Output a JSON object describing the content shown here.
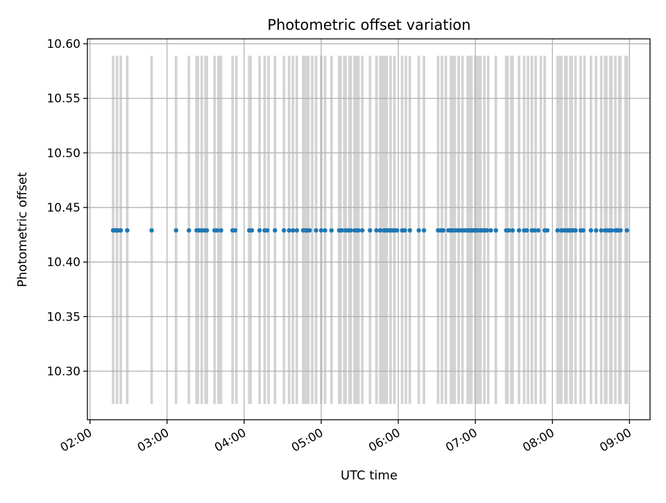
{
  "chart_data": {
    "type": "scatter",
    "title": "Photometric offset variation",
    "xlabel": "UTC time",
    "ylabel": "Photometric offset",
    "x_unit": "UTC time of day",
    "xlim": [
      "01:58",
      "09:16"
    ],
    "ylim": [
      10.2555,
      10.6045
    ],
    "x_tick_labels": [
      "02:00",
      "03:00",
      "04:00",
      "05:00",
      "06:00",
      "07:00",
      "08:00",
      "09:00"
    ],
    "y_tick_values": [
      10.3,
      10.35,
      10.4,
      10.45,
      10.5,
      10.55,
      10.6
    ],
    "y_tick_labels": [
      "10.30",
      "10.35",
      "10.40",
      "10.45",
      "10.50",
      "10.55",
      "10.60"
    ],
    "grid": true,
    "colors": {
      "points": "#1f77b4",
      "bands": "#d3d3d3",
      "grid": "#b0b0b0",
      "axes": "#000000"
    },
    "series": [
      {
        "mark": "point",
        "y": 10.429,
        "x": [
          "02:18",
          "02:19",
          "02:20",
          "02:21",
          "02:22",
          "02:24",
          "02:29",
          "02:48",
          "03:07",
          "03:17",
          "03:23",
          "03:25",
          "03:27",
          "03:29",
          "03:31",
          "03:37",
          "03:39",
          "03:42",
          "03:51",
          "03:53",
          "04:04",
          "04:06",
          "04:12",
          "04:16",
          "04:18",
          "04:24",
          "04:31",
          "04:35",
          "04:38",
          "04:41",
          "04:46",
          "04:48",
          "04:49",
          "04:51",
          "04:56",
          "05:00",
          "05:03",
          "05:08",
          "05:14",
          "05:16",
          "05:19",
          "05:21",
          "05:23",
          "05:26",
          "05:28",
          "05:29",
          "05:32",
          "05:38",
          "05:43",
          "05:46",
          "05:49",
          "05:50",
          "05:51",
          "05:53",
          "05:54",
          "05:56",
          "05:57",
          "05:59",
          "06:03",
          "06:05",
          "06:09",
          "06:16",
          "06:20",
          "06:31",
          "06:33",
          "06:35",
          "06:39",
          "06:41",
          "06:42",
          "06:44",
          "06:46",
          "06:48",
          "06:50",
          "06:52",
          "06:54",
          "06:55",
          "06:56",
          "06:57",
          "06:58",
          "06:59",
          "07:00",
          "07:01",
          "07:02",
          "07:04",
          "07:05",
          "07:07",
          "07:08",
          "07:09",
          "07:12",
          "07:16",
          "07:24",
          "07:26",
          "07:29",
          "07:34",
          "07:38",
          "07:40",
          "07:44",
          "07:46",
          "07:49",
          "07:54",
          "07:56",
          "08:04",
          "08:07",
          "08:09",
          "08:11",
          "08:12",
          "08:13",
          "08:14",
          "08:16",
          "08:18",
          "08:22",
          "08:24",
          "08:30",
          "08:34",
          "08:38",
          "08:41",
          "08:42",
          "08:44",
          "08:46",
          "08:49",
          "08:50",
          "08:51",
          "08:53",
          "08:58"
        ]
      },
      {
        "mark": "band",
        "y_range": [
          10.27,
          10.589
        ],
        "x_intervals": [
          [
            "02:17",
            "02:19"
          ],
          [
            "02:20",
            "02:22"
          ],
          [
            "02:23",
            "02:25"
          ],
          [
            "02:28",
            "02:30"
          ],
          [
            "02:47",
            "02:49"
          ],
          [
            "03:06",
            "03:08"
          ],
          [
            "03:16",
            "03:18"
          ],
          [
            "03:22",
            "03:25"
          ],
          [
            "03:26",
            "03:28"
          ],
          [
            "03:29",
            "03:32"
          ],
          [
            "03:36",
            "03:38"
          ],
          [
            "03:39",
            "03:43"
          ],
          [
            "03:50",
            "03:52"
          ],
          [
            "03:53",
            "03:55"
          ],
          [
            "04:03",
            "04:06"
          ],
          [
            "04:11",
            "04:13"
          ],
          [
            "04:15",
            "04:17"
          ],
          [
            "04:18",
            "04:20"
          ],
          [
            "04:23",
            "04:25"
          ],
          [
            "04:30",
            "04:32"
          ],
          [
            "04:34",
            "04:36"
          ],
          [
            "04:37",
            "04:39"
          ],
          [
            "04:40",
            "04:42"
          ],
          [
            "04:45",
            "04:51"
          ],
          [
            "04:52",
            "04:54"
          ],
          [
            "04:55",
            "04:57"
          ],
          [
            "04:59",
            "05:01"
          ],
          [
            "05:02",
            "05:04"
          ],
          [
            "05:07",
            "05:09"
          ],
          [
            "05:13",
            "05:16"
          ],
          [
            "05:17",
            "05:20"
          ],
          [
            "05:21",
            "05:24"
          ],
          [
            "05:25",
            "05:30"
          ],
          [
            "05:31",
            "05:33"
          ],
          [
            "05:37",
            "05:39"
          ],
          [
            "05:42",
            "05:44"
          ],
          [
            "05:45",
            "05:52"
          ],
          [
            "05:53",
            "05:55"
          ],
          [
            "05:56",
            "05:58"
          ],
          [
            "06:02",
            "06:04"
          ],
          [
            "06:05",
            "06:07"
          ],
          [
            "06:08",
            "06:10"
          ],
          [
            "06:15",
            "06:17"
          ],
          [
            "06:19",
            "06:21"
          ],
          [
            "06:30",
            "06:32"
          ],
          [
            "06:33",
            "06:35"
          ],
          [
            "06:36",
            "06:38"
          ],
          [
            "06:40",
            "06:45"
          ],
          [
            "06:46",
            "06:48"
          ],
          [
            "06:49",
            "06:51"
          ],
          [
            "06:53",
            "06:58"
          ],
          [
            "06:59",
            "07:05"
          ],
          [
            "07:06",
            "07:08"
          ],
          [
            "07:09",
            "07:11"
          ],
          [
            "07:15",
            "07:17"
          ],
          [
            "07:23",
            "07:26"
          ],
          [
            "07:27",
            "07:30"
          ],
          [
            "07:33",
            "07:35"
          ],
          [
            "07:37",
            "07:39"
          ],
          [
            "07:40",
            "07:42"
          ],
          [
            "07:43",
            "07:45"
          ],
          [
            "07:46",
            "07:48"
          ],
          [
            "07:50",
            "07:52"
          ],
          [
            "07:53",
            "07:55"
          ],
          [
            "08:03",
            "08:08"
          ],
          [
            "08:09",
            "08:12"
          ],
          [
            "08:13",
            "08:16"
          ],
          [
            "08:17",
            "08:19"
          ],
          [
            "08:21",
            "08:23"
          ],
          [
            "08:24",
            "08:26"
          ],
          [
            "08:29",
            "08:31"
          ],
          [
            "08:33",
            "08:35"
          ],
          [
            "08:37",
            "08:39"
          ],
          [
            "08:40",
            "08:43"
          ],
          [
            "08:44",
            "08:47"
          ],
          [
            "08:48",
            "08:50"
          ],
          [
            "08:51",
            "08:54"
          ],
          [
            "08:56",
            "08:59"
          ]
        ]
      }
    ]
  }
}
